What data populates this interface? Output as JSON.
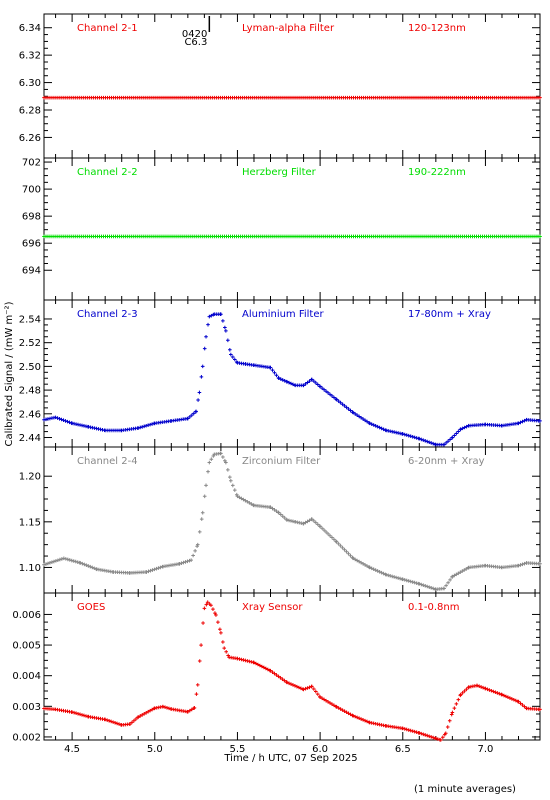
{
  "figure": {
    "x_axis_label": "Time / h UTC, 07 Sep 2025",
    "y_axis_label": "Calibrated Signal / (mW m⁻²)",
    "footnote": "(1 minute averages)",
    "flare_marker": {
      "x": 5.33,
      "line1": "0420",
      "line2": "C6.3"
    }
  },
  "chart_data": [
    {
      "type": "scatter",
      "labels": [
        "Channel 2-1",
        "Lyman-alpha Filter",
        "120-123nm"
      ],
      "color": "#ee0000",
      "xlim": [
        4.33,
        7.33
      ],
      "ylim": [
        6.245,
        6.35
      ],
      "yticks": [
        6.26,
        6.28,
        6.3,
        6.32,
        6.34
      ],
      "ytick_labels": [
        "6.26",
        "6.28",
        "6.30",
        "6.32",
        "6.34"
      ],
      "series": [
        {
          "x": [
            4.33,
            7.33
          ],
          "y": [
            6.289,
            6.289
          ]
        }
      ]
    },
    {
      "type": "scatter",
      "labels": [
        "Channel 2-2",
        "Herzberg Filter",
        "190-222nm"
      ],
      "color": "#00dd00",
      "xlim": [
        4.33,
        7.33
      ],
      "ylim": [
        691.8,
        702.3
      ],
      "yticks": [
        694,
        696,
        698,
        700,
        702
      ],
      "ytick_labels": [
        "694",
        "696",
        "698",
        "700",
        "702"
      ],
      "series": [
        {
          "x": [
            4.33,
            7.33
          ],
          "y": [
            696.5,
            696.5
          ]
        }
      ]
    },
    {
      "type": "scatter",
      "labels": [
        "Channel 2-3",
        "Aluminium Filter",
        "17-80nm + Xray"
      ],
      "color": "#0000cc",
      "xlim": [
        4.33,
        7.33
      ],
      "ylim": [
        2.432,
        2.556
      ],
      "yticks": [
        2.44,
        2.46,
        2.48,
        2.5,
        2.52,
        2.54
      ],
      "ytick_labels": [
        "2.44",
        "2.46",
        "2.48",
        "2.50",
        "2.52",
        "2.54"
      ],
      "series": [
        {
          "x": [
            4.33,
            4.4,
            4.5,
            4.6,
            4.7,
            4.8,
            4.9,
            5.0,
            5.1,
            5.2,
            5.25,
            5.27,
            5.29,
            5.31,
            5.33,
            5.36,
            5.4,
            5.43,
            5.46,
            5.5,
            5.55,
            5.6,
            5.7,
            5.75,
            5.8,
            5.85,
            5.9,
            5.95,
            6.0,
            6.1,
            6.2,
            6.3,
            6.4,
            6.5,
            6.6,
            6.7,
            6.75,
            6.8,
            6.85,
            6.9,
            7.0,
            7.1,
            7.2,
            7.25,
            7.33
          ],
          "y": [
            2.455,
            2.457,
            2.452,
            2.449,
            2.446,
            2.446,
            2.448,
            2.452,
            2.454,
            2.456,
            2.462,
            2.478,
            2.5,
            2.525,
            2.542,
            2.544,
            2.544,
            2.53,
            2.51,
            2.503,
            2.502,
            2.501,
            2.499,
            2.49,
            2.487,
            2.484,
            2.484,
            2.489,
            2.483,
            2.472,
            2.461,
            2.452,
            2.446,
            2.443,
            2.439,
            2.434,
            2.434,
            2.44,
            2.447,
            2.45,
            2.451,
            2.45,
            2.452,
            2.455,
            2.454
          ]
        }
      ]
    },
    {
      "type": "scatter",
      "labels": [
        "Channel 2-4",
        "Zirconium Filter",
        "6-20nm + Xray"
      ],
      "color": "#888888",
      "xlim": [
        4.33,
        7.33
      ],
      "ylim": [
        1.072,
        1.232
      ],
      "yticks": [
        1.1,
        1.15,
        1.2
      ],
      "ytick_labels": [
        "1.10",
        "1.15",
        "1.20"
      ],
      "series": [
        {
          "x": [
            4.33,
            4.45,
            4.55,
            4.65,
            4.75,
            4.85,
            4.95,
            5.05,
            5.15,
            5.22,
            5.26,
            5.29,
            5.31,
            5.33,
            5.36,
            5.4,
            5.43,
            5.46,
            5.5,
            5.6,
            5.7,
            5.75,
            5.8,
            5.85,
            5.9,
            5.95,
            6.0,
            6.1,
            6.2,
            6.3,
            6.4,
            6.5,
            6.6,
            6.7,
            6.75,
            6.8,
            6.9,
            7.0,
            7.1,
            7.2,
            7.25,
            7.33
          ],
          "y": [
            1.103,
            1.11,
            1.105,
            1.098,
            1.095,
            1.094,
            1.095,
            1.101,
            1.104,
            1.108,
            1.125,
            1.16,
            1.19,
            1.215,
            1.224,
            1.225,
            1.215,
            1.195,
            1.178,
            1.168,
            1.166,
            1.16,
            1.152,
            1.15,
            1.148,
            1.153,
            1.145,
            1.128,
            1.11,
            1.1,
            1.092,
            1.087,
            1.082,
            1.076,
            1.077,
            1.09,
            1.1,
            1.102,
            1.1,
            1.102,
            1.105,
            1.104
          ]
        }
      ]
    },
    {
      "type": "scatter",
      "labels": [
        "GOES",
        "Xray Sensor",
        "0.1-0.8nm"
      ],
      "color": "#ee0000",
      "xlim": [
        4.33,
        7.33
      ],
      "ylim": [
        0.0019,
        0.0067
      ],
      "yticks": [
        0.002,
        0.003,
        0.004,
        0.005,
        0.006
      ],
      "ytick_labels": [
        "0.002",
        "0.003",
        "0.004",
        "0.005",
        "0.006"
      ],
      "series": [
        {
          "x": [
            4.33,
            4.4,
            4.5,
            4.6,
            4.7,
            4.8,
            4.85,
            4.9,
            5.0,
            5.05,
            5.1,
            5.2,
            5.24,
            5.26,
            5.28,
            5.3,
            5.32,
            5.34,
            5.37,
            5.4,
            5.42,
            5.45,
            5.5,
            5.6,
            5.7,
            5.8,
            5.9,
            5.95,
            6.0,
            6.1,
            6.2,
            6.3,
            6.4,
            6.5,
            6.6,
            6.7,
            6.73,
            6.76,
            6.8,
            6.85,
            6.9,
            6.95,
            7.0,
            7.1,
            7.2,
            7.25,
            7.33
          ],
          "y": [
            0.00293,
            0.0029,
            0.00281,
            0.00266,
            0.00257,
            0.00239,
            0.00242,
            0.00265,
            0.00294,
            0.00299,
            0.00291,
            0.00282,
            0.00295,
            0.0037,
            0.005,
            0.0062,
            0.0064,
            0.0063,
            0.00598,
            0.0054,
            0.0049,
            0.0046,
            0.00456,
            0.00443,
            0.00416,
            0.00378,
            0.00355,
            0.00365,
            0.0033,
            0.00298,
            0.00269,
            0.00247,
            0.00236,
            0.00228,
            0.00213,
            0.00195,
            0.0019,
            0.00212,
            0.0028,
            0.00338,
            0.00363,
            0.00368,
            0.00358,
            0.00338,
            0.00315,
            0.00293,
            0.0029
          ]
        }
      ]
    }
  ]
}
